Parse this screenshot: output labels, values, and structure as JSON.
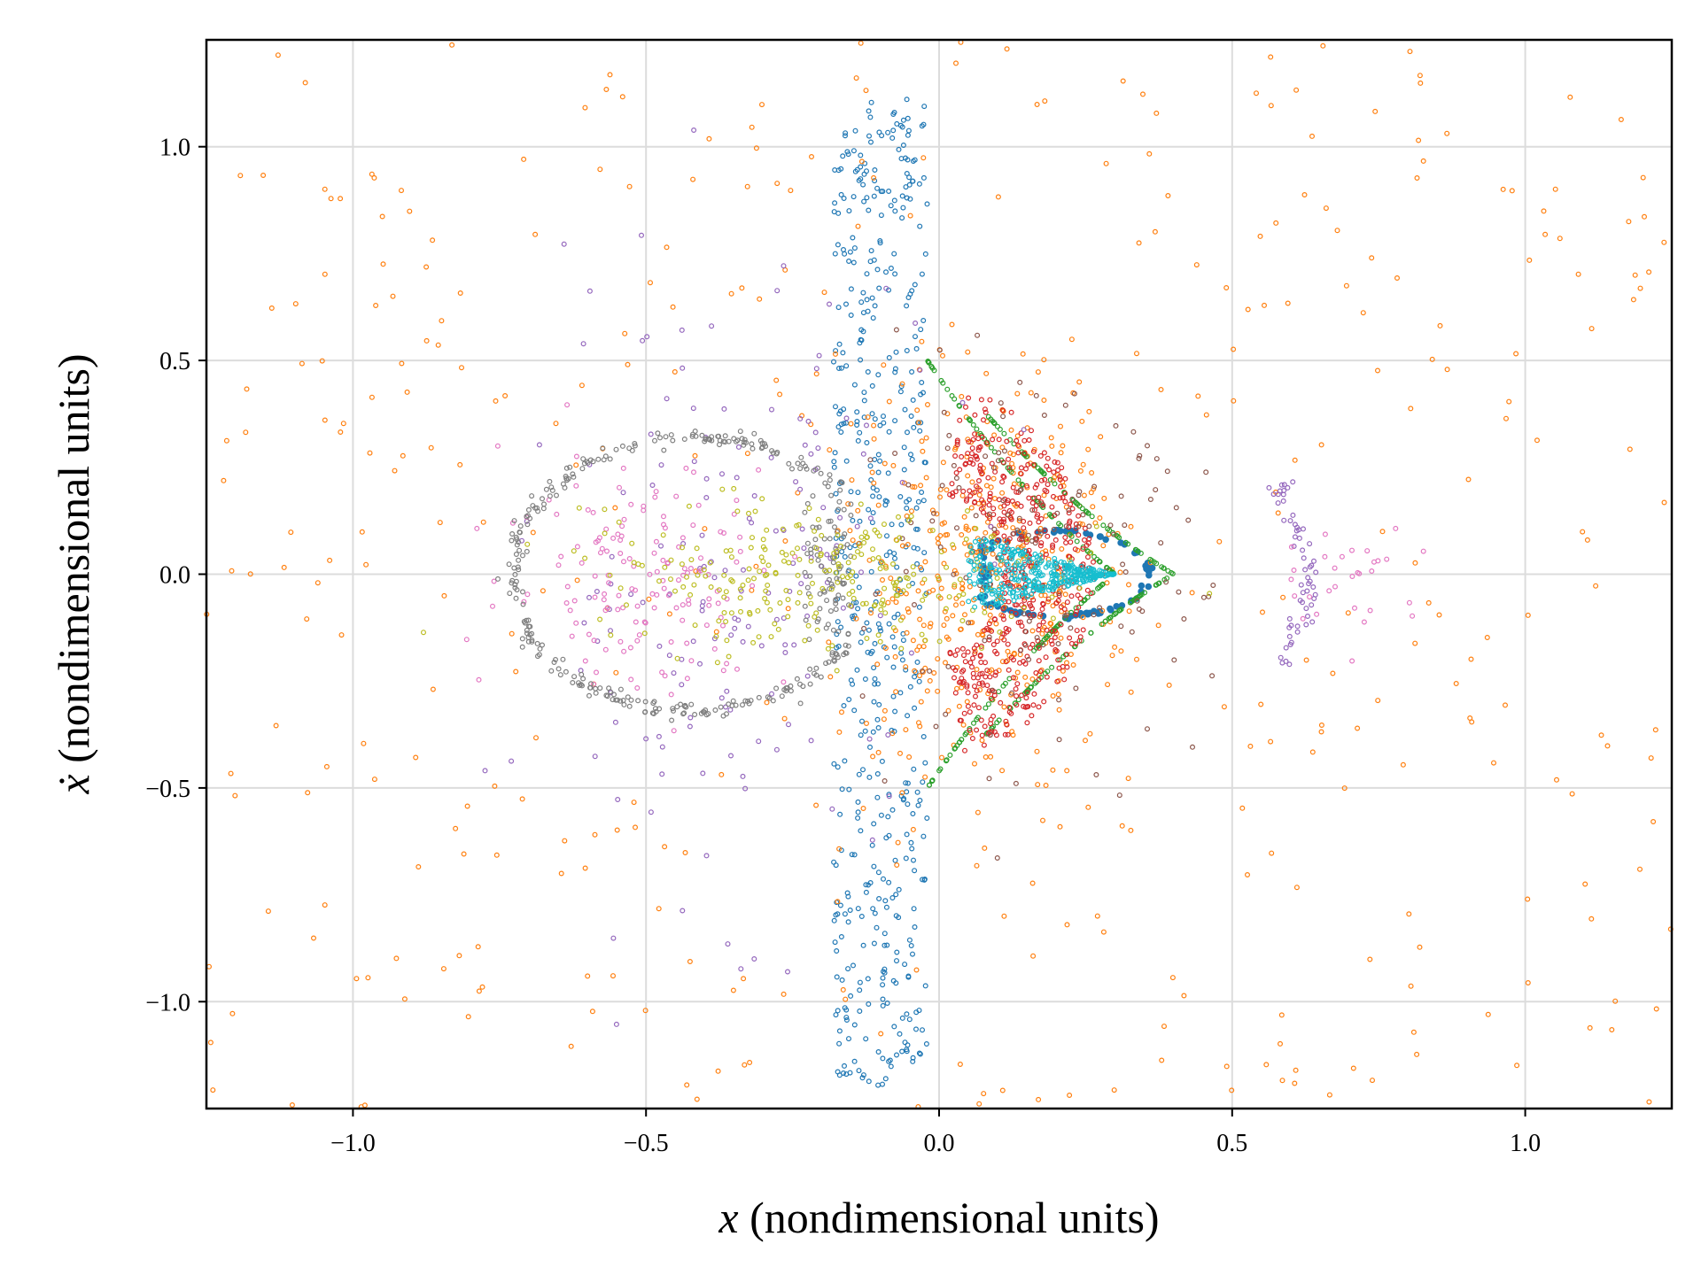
{
  "chart_data": {
    "type": "scatter",
    "title": "",
    "xlabel": "x (nondimensional units)",
    "ylabel": "ẋ (nondimensional units)",
    "xlabel_var": "x",
    "xlabel_rest": " (nondimensional units)",
    "ylabel_var": "ẋ",
    "ylabel_rest": " (nondimensional units)",
    "xlim": [
      -1.25,
      1.25
    ],
    "ylim": [
      -1.25,
      1.25
    ],
    "xticks": [
      -1.0,
      -0.5,
      0.0,
      0.5,
      1.0
    ],
    "yticks": [
      -1.0,
      -0.5,
      0.0,
      0.5,
      1.0
    ],
    "xtick_labels": [
      "−1.0",
      "−0.5",
      "0.0",
      "0.5",
      "1.0"
    ],
    "ytick_labels": [
      "−1.0",
      "−0.5",
      "0.0",
      "0.5",
      "1.0"
    ],
    "grid": true,
    "legend": "none",
    "series": [
      {
        "color": "#1f77b4",
        "kind": "ellipse",
        "cx": 0.2,
        "cy": 0.0,
        "rx": 0.16,
        "ry": 0.1,
        "count": 90
      },
      {
        "color": "#1f77b4",
        "kind": "band",
        "x": [
          -0.18,
          -0.02
        ],
        "y": [
          -1.2,
          1.12
        ],
        "count": 520
      },
      {
        "color": "#ff7f0e",
        "kind": "scatter",
        "x": [
          -1.25,
          1.25
        ],
        "y": [
          -1.25,
          1.25
        ],
        "count": 420
      },
      {
        "color": "#ff7f0e",
        "kind": "cloud",
        "cx": 0.08,
        "cy": 0.0,
        "sx": 0.12,
        "sy": 0.22,
        "count": 420
      },
      {
        "color": "#2ca02c",
        "kind": "curves",
        "x0": -0.02,
        "x1": 0.3,
        "amp": 0.5,
        "count": 260
      },
      {
        "color": "#d62728",
        "kind": "arcs",
        "cx": 0.0,
        "cy": 0.0,
        "r": [
          0.1,
          0.24
        ],
        "span": 0.45,
        "count": 480
      },
      {
        "color": "#9467bd",
        "kind": "cloud",
        "cx": -0.35,
        "cy": 0.0,
        "sx": 0.17,
        "sy": 0.35,
        "count": 170
      },
      {
        "color": "#9467bd",
        "kind": "arrow",
        "cx": 0.58,
        "cy": 0.0,
        "count": 60
      },
      {
        "color": "#8c564b",
        "kind": "cloud",
        "cx": 0.15,
        "cy": 0.0,
        "sx": 0.15,
        "sy": 0.2,
        "count": 160
      },
      {
        "color": "#e377c2",
        "kind": "cloud",
        "cx": -0.5,
        "cy": 0.0,
        "sx": 0.12,
        "sy": 0.14,
        "count": 150
      },
      {
        "color": "#e377c2",
        "kind": "cloud",
        "cx": 0.7,
        "cy": 0.0,
        "sx": 0.06,
        "sy": 0.06,
        "count": 30
      },
      {
        "color": "#7f7f7f",
        "kind": "ellipse",
        "cx": -0.42,
        "cy": 0.0,
        "rx": 0.31,
        "ry": 0.32,
        "count": 360
      },
      {
        "color": "#bcbd22",
        "kind": "cloud",
        "cx": -0.2,
        "cy": 0.0,
        "sx": 0.2,
        "sy": 0.08,
        "count": 260
      },
      {
        "color": "#17becf",
        "kind": "arrowhead",
        "cx": 0.05,
        "cy": 0.0,
        "tipx": 0.3,
        "count": 340
      }
    ]
  }
}
